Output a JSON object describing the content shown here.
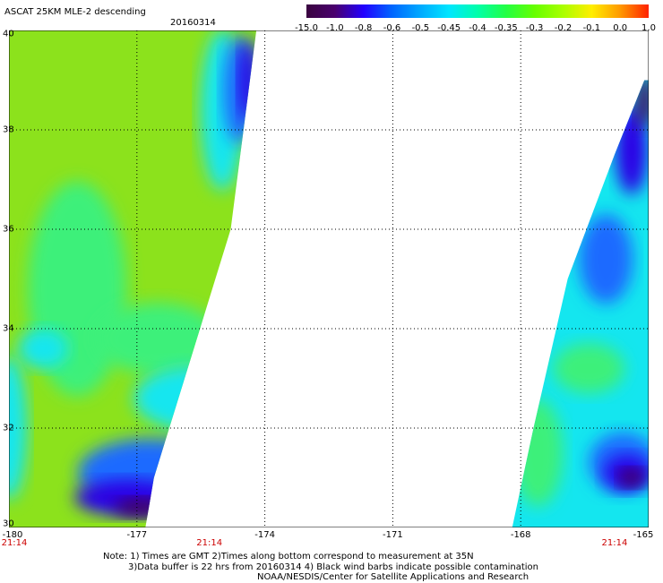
{
  "header": {
    "title": "ASCAT 25KM MLE-2 descending",
    "date": "20160314"
  },
  "colorbar": {
    "labels": [
      "-15.0",
      "-1.0",
      "-0.8",
      "-0.6",
      "-0.5",
      "-0.45",
      "-0.4",
      "-0.35",
      "-0.3",
      "-0.2",
      "-0.1",
      "0.0",
      "1.0"
    ],
    "colors": [
      "#3a0540",
      "#4a006e",
      "#2200ff",
      "#0066ff",
      "#00aaff",
      "#00e6ff",
      "#00ffaa",
      "#22ff44",
      "#66ff00",
      "#aaff00",
      "#ffee00",
      "#ff9900",
      "#ff2200"
    ]
  },
  "map": {
    "lon_range": [
      -180,
      -165
    ],
    "lat_range": [
      30,
      40
    ],
    "lon_ticks": [
      "-180",
      "-177",
      "-174",
      "-171",
      "-168",
      "-165"
    ],
    "lat_ticks": [
      "30",
      "32",
      "34",
      "36",
      "38",
      "40"
    ],
    "swaths": [
      {
        "name": "west-swath",
        "time": "21:14",
        "time_lon": -180,
        "edge": [
          [
            -180,
            40
          ],
          [
            -174.2,
            40
          ],
          [
            -174.8,
            36
          ],
          [
            -176.6,
            31
          ],
          [
            -176.8,
            30
          ],
          [
            -180,
            30
          ]
        ]
      },
      {
        "name": "middle-swath-time",
        "time": "21:14",
        "time_lon": -175.3
      },
      {
        "name": "east-swath",
        "time": "21:14",
        "time_lon": -165.8,
        "edge": [
          [
            -165.1,
            39
          ],
          [
            -165,
            39
          ],
          [
            -165,
            30
          ],
          [
            -168.2,
            30
          ],
          [
            -167.7,
            32
          ],
          [
            -166.9,
            35
          ],
          [
            -165.8,
            37.5
          ]
        ]
      }
    ],
    "field_colors": {
      "high": "#8ce21c",
      "mid": "#3cf07a",
      "low": "#14e6ef",
      "lower": "#1a6bff",
      "lowest": "#2c00e6",
      "extreme": "#43005c"
    }
  },
  "notes": [
    "Note: 1) Times are GMT 2)Times along bottom correspond to measurement at 35N",
    "3)Data buffer is 22 hrs from 20160314 4) Black wind barbs indicate possible contamination",
    "NOAA/NESDIS/Center for Satellite Applications and Research"
  ]
}
